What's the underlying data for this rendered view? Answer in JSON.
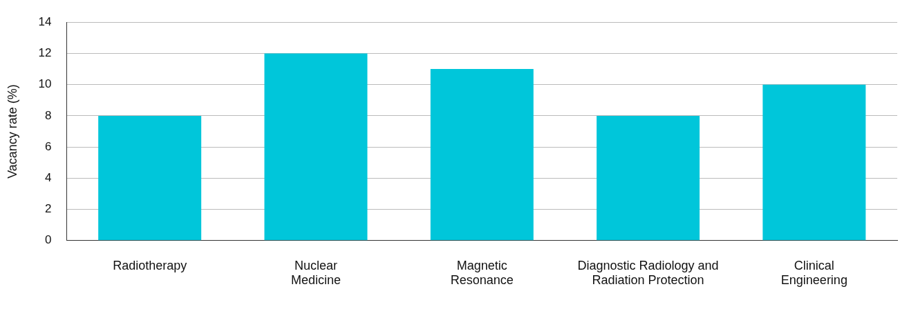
{
  "chart_data": {
    "type": "bar",
    "ylabel": "Vacancy rate (%)",
    "categories": [
      "Radiotherapy",
      "Nuclear Medicine",
      "Magnetic Resonance",
      "Diagnostic Radiology and Radiation Protection",
      "Clinical Engineering"
    ],
    "values": [
      8,
      12,
      11,
      8,
      10
    ],
    "color": "#00c6da",
    "ylim": [
      0,
      14
    ],
    "yticks": [
      0,
      2,
      4,
      6,
      8,
      10,
      12,
      14
    ],
    "grid": "y",
    "legend": false
  }
}
